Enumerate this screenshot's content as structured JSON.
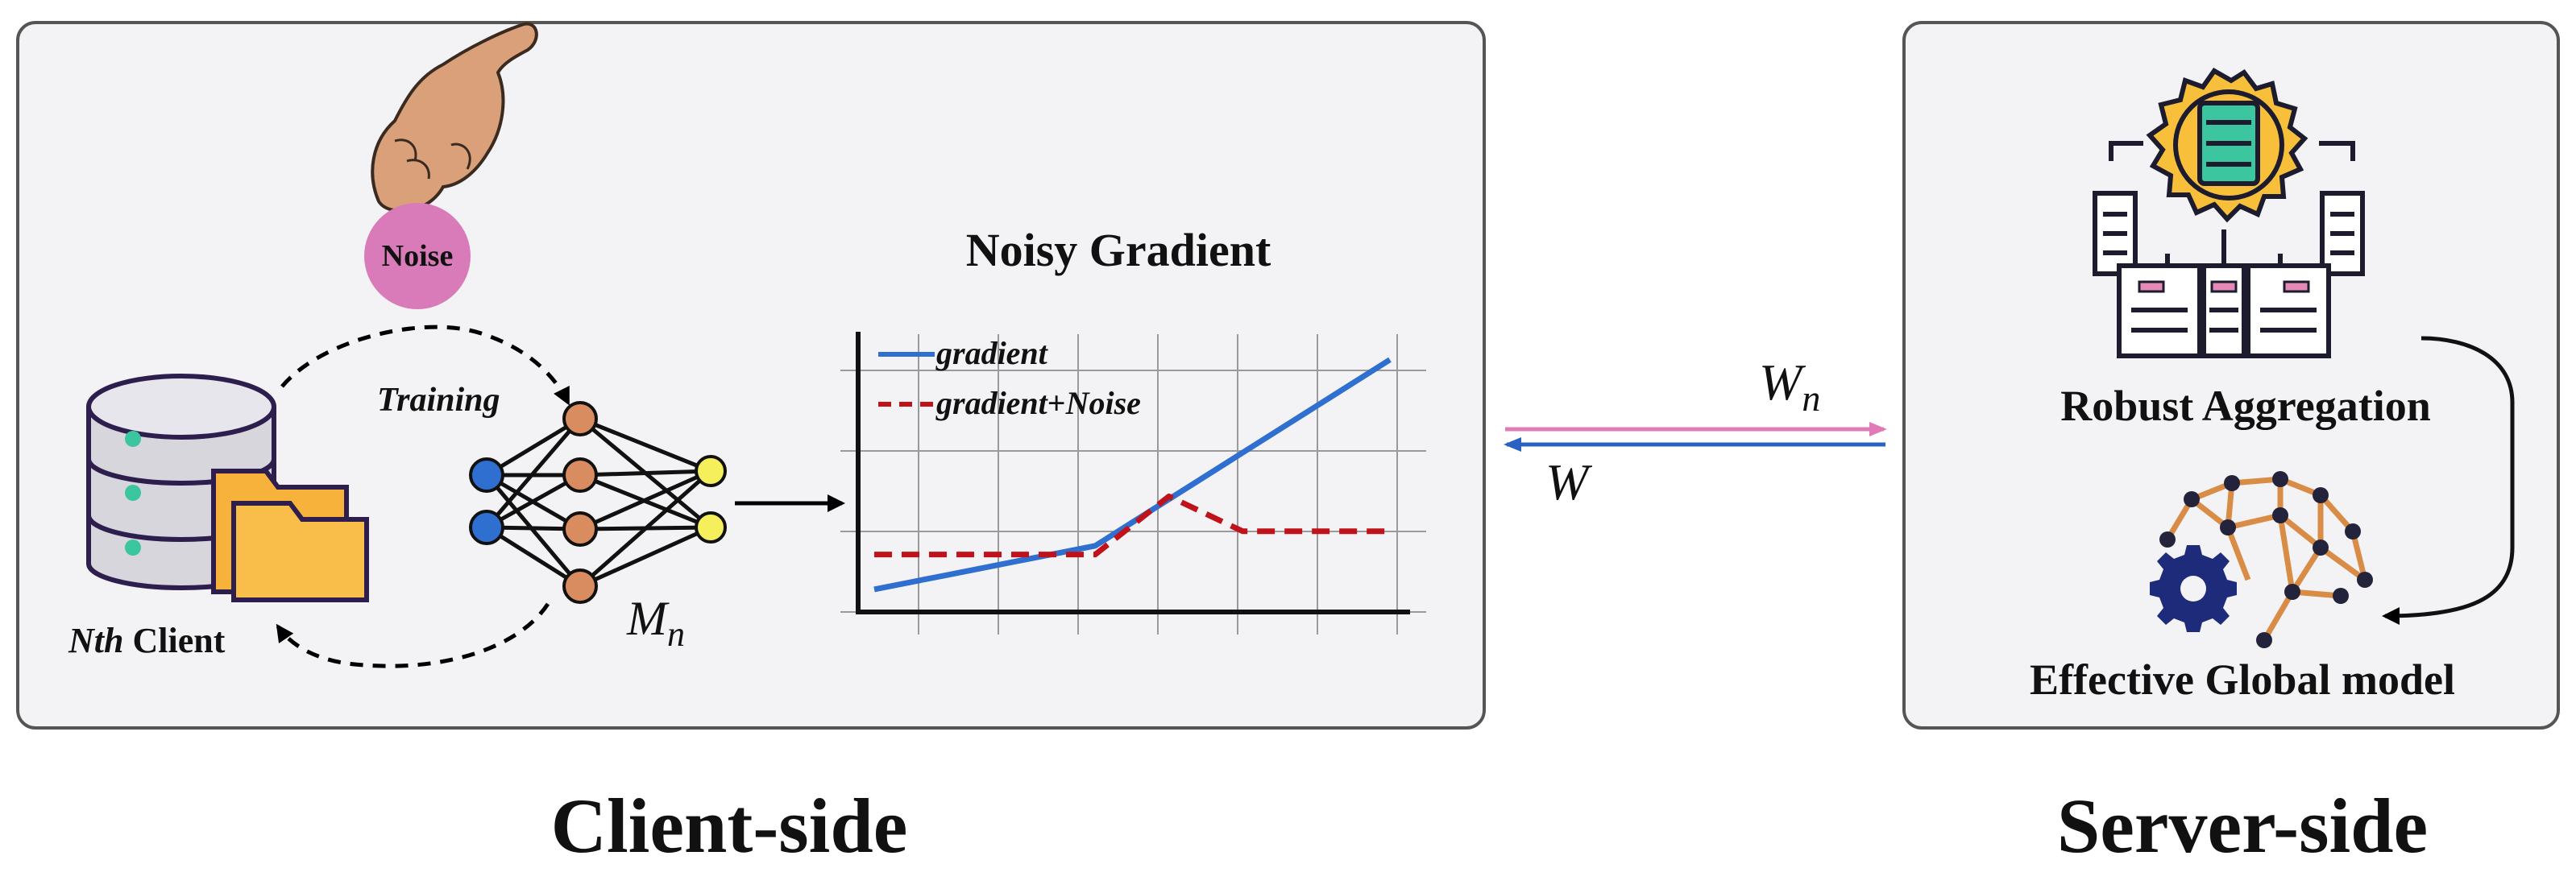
{
  "client": {
    "noise_label": "Noise",
    "training_label": "Training",
    "client_italic": "Nth",
    "client_rest": " Client",
    "model_base": "M",
    "model_sub": "n",
    "footer_label": "Client-side"
  },
  "chart": {
    "title": "Noisy Gradient",
    "legend_gradient": "gradient",
    "legend_noise_word": "gradient",
    "legend_noise_plus": "+",
    "legend_noise_italic": "Noise"
  },
  "chart_data": {
    "type": "line",
    "title": "Noisy Gradient",
    "xlabel": "",
    "ylabel": "",
    "grid": true,
    "legend_position": "top-left",
    "x": [
      0,
      1,
      2,
      3,
      4,
      5,
      6,
      7
    ],
    "series": [
      {
        "name": "gradient",
        "style": "solid",
        "color": "#2f6fd0",
        "values": [
          0.5,
          1.0,
          1.5,
          2.0,
          3.6,
          5.2,
          6.8,
          8.4
        ]
      },
      {
        "name": "gradient+Noise",
        "style": "dashed",
        "color": "#c0121b",
        "values": [
          1.7,
          1.7,
          1.7,
          1.7,
          3.7,
          2.5,
          2.5,
          2.5
        ]
      }
    ],
    "ylim": [
      0,
      9
    ]
  },
  "link": {
    "upload_base": "W",
    "upload_sub": "n",
    "download_label": "W",
    "upload_color": "#e07bb8",
    "download_color": "#2a62c4"
  },
  "server": {
    "aggregation_label": "Robust Aggregation",
    "global_model_label": "Effective Global model",
    "footer_label": "Server-side"
  },
  "colors": {
    "panel_fill": "#f3f3f5",
    "panel_stroke": "#555555",
    "noise_fill": "#d97bb8",
    "folder": "#f7b23b",
    "gear_yellow": "#f8c03a",
    "server_teal": "#3cc6a0",
    "gear_navy": "#1e2b7a",
    "brain_orange": "#d98c45"
  }
}
